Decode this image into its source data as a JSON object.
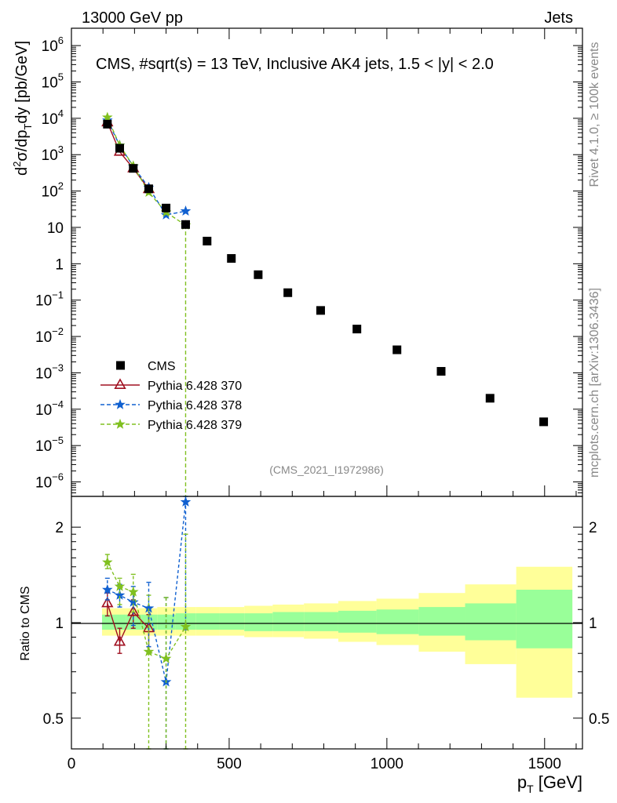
{
  "header": {
    "energy": "13000 GeV pp",
    "category": "Jets",
    "plot_title": "CMS, #sqrt(s) = 13 TeV, Inclusive AK4 jets, 1.5 < |y| < 2.0",
    "analysis_id": "(CMS_2021_I1972986)",
    "side_rivet": "Rivet 4.1.0, ≥ 100k events",
    "side_mcplots": "mcplots.cern.ch [arXiv:1306.3436]"
  },
  "chart_data": {
    "type": "scatter",
    "x_label": "p",
    "x_label_sub": "T",
    "x_label_unit": " [GeV]",
    "xlim": [
      0,
      1620
    ],
    "x_ticks": [
      0,
      500,
      1000,
      1500
    ],
    "x_tick_labels": [
      "0",
      "500",
      "1000",
      "1500"
    ],
    "main": {
      "y_label": "d²σ/dp_T dy [pb/GeV]",
      "y_scale": "log",
      "ylim": [
        4e-07,
        3000000.0
      ],
      "y_ticks": [
        {
          "v": 1000000.0,
          "base": "10",
          "exp": "6"
        },
        {
          "v": 100000.0,
          "base": "10",
          "exp": "5"
        },
        {
          "v": 10000.0,
          "base": "10",
          "exp": "4"
        },
        {
          "v": 1000.0,
          "base": "10",
          "exp": "3"
        },
        {
          "v": 100.0,
          "base": "10",
          "exp": "2"
        },
        {
          "v": 10,
          "base": "10",
          "exp": ""
        },
        {
          "v": 1,
          "base": "1",
          "exp": ""
        },
        {
          "v": 0.1,
          "base": "10",
          "exp": "−1"
        },
        {
          "v": 0.01,
          "base": "10",
          "exp": "−2"
        },
        {
          "v": 0.001,
          "base": "10",
          "exp": "−3"
        },
        {
          "v": 0.0001,
          "base": "10",
          "exp": "−4"
        },
        {
          "v": 1e-05,
          "base": "10",
          "exp": "−5"
        },
        {
          "v": 1e-06,
          "base": "10",
          "exp": "−6"
        }
      ],
      "cms": {
        "name": "CMS",
        "x": [
          114,
          153,
          196,
          245,
          300,
          362,
          430,
          507,
          592,
          686,
          790,
          905,
          1032,
          1172,
          1327,
          1497
        ],
        "y": [
          6900,
          1500,
          420,
          115,
          34,
          12,
          4.2,
          1.4,
          0.5,
          0.16,
          0.052,
          0.016,
          0.0043,
          0.0011,
          0.0002,
          4.5e-05
        ]
      },
      "series": [
        {
          "name": "Pythia 6.428 370",
          "color": "#a01020",
          "style": "solid",
          "marker": "triangle",
          "x": [
            114,
            153,
            196,
            245
          ],
          "y": [
            7700,
            1200,
            420,
            112
          ]
        },
        {
          "name": "Pythia 6.428 378",
          "color": "#1060d0",
          "style": "dashed",
          "marker": "star",
          "x": [
            114,
            153,
            196,
            245,
            300,
            362
          ],
          "y": [
            8800,
            1800,
            470,
            125,
            22,
            28
          ]
        },
        {
          "name": "Pythia 6.428 379",
          "color": "#80c020",
          "style": "dashed",
          "marker": "star",
          "x": [
            114,
            153,
            196,
            245,
            300,
            362
          ],
          "y": [
            10600,
            1800,
            490,
            92,
            26,
            11.5
          ]
        }
      ]
    },
    "ratio": {
      "y_label": "Ratio to CMS",
      "y_scale": "log",
      "ylim": [
        0.4,
        2.5
      ],
      "y_ticks": [
        {
          "v": 0.5,
          "label": "0.5"
        },
        {
          "v": 1,
          "label": "1"
        },
        {
          "v": 2,
          "label": "2"
        }
      ],
      "bands": [
        {
          "x0": 97,
          "x1": 133,
          "inner": [
            0.95,
            1.06
          ],
          "outer": [
            0.91,
            1.11
          ]
        },
        {
          "x0": 133,
          "x1": 174,
          "inner": [
            0.95,
            1.06
          ],
          "outer": [
            0.91,
            1.11
          ]
        },
        {
          "x0": 174,
          "x1": 220,
          "inner": [
            0.95,
            1.06
          ],
          "outer": [
            0.91,
            1.11
          ]
        },
        {
          "x0": 220,
          "x1": 272,
          "inner": [
            0.95,
            1.06
          ],
          "outer": [
            0.91,
            1.11
          ]
        },
        {
          "x0": 272,
          "x1": 330,
          "inner": [
            0.95,
            1.06
          ],
          "outer": [
            0.91,
            1.12
          ]
        },
        {
          "x0": 330,
          "x1": 395,
          "inner": [
            0.95,
            1.07
          ],
          "outer": [
            0.91,
            1.12
          ]
        },
        {
          "x0": 395,
          "x1": 468,
          "inner": [
            0.95,
            1.07
          ],
          "outer": [
            0.91,
            1.12
          ]
        },
        {
          "x0": 468,
          "x1": 548,
          "inner": [
            0.95,
            1.07
          ],
          "outer": [
            0.91,
            1.12
          ]
        },
        {
          "x0": 548,
          "x1": 638,
          "inner": [
            0.94,
            1.07
          ],
          "outer": [
            0.9,
            1.13
          ]
        },
        {
          "x0": 638,
          "x1": 737,
          "inner": [
            0.94,
            1.08
          ],
          "outer": [
            0.9,
            1.14
          ]
        },
        {
          "x0": 737,
          "x1": 846,
          "inner": [
            0.94,
            1.08
          ],
          "outer": [
            0.89,
            1.15
          ]
        },
        {
          "x0": 846,
          "x1": 967,
          "inner": [
            0.93,
            1.09
          ],
          "outer": [
            0.87,
            1.17
          ]
        },
        {
          "x0": 967,
          "x1": 1101,
          "inner": [
            0.92,
            1.1
          ],
          "outer": [
            0.85,
            1.19
          ]
        },
        {
          "x0": 1101,
          "x1": 1248,
          "inner": [
            0.91,
            1.12
          ],
          "outer": [
            0.81,
            1.24
          ]
        },
        {
          "x0": 1248,
          "x1": 1410,
          "inner": [
            0.88,
            1.15
          ],
          "outer": [
            0.74,
            1.32
          ]
        },
        {
          "x0": 1410,
          "x1": 1588,
          "inner": [
            0.83,
            1.27
          ],
          "outer": [
            0.58,
            1.5
          ]
        }
      ],
      "series": [
        {
          "name": "Pythia 6.428 370",
          "color": "#a01020",
          "style": "solid",
          "marker": "triangle",
          "x": [
            114,
            153,
            196,
            245
          ],
          "y": [
            1.15,
            0.87,
            1.08,
            0.96
          ],
          "err": [
            [
              1.05,
              1.24
            ],
            [
              0.8,
              0.96
            ],
            [
              0.96,
              1.18
            ],
            [
              0.84,
              1.06
            ]
          ]
        },
        {
          "name": "Pythia 6.428 378",
          "color": "#1060d0",
          "style": "dashed",
          "marker": "star",
          "x": [
            114,
            153,
            196,
            245,
            300,
            362
          ],
          "y": [
            1.27,
            1.22,
            1.16,
            1.11,
            0.65,
            2.4
          ],
          "err": [
            [
              1.18,
              1.38
            ],
            [
              1.12,
              1.32
            ],
            [
              0.98,
              1.3
            ],
            [
              0.84,
              1.34
            ],
            [
              0.4,
              1.2
            ],
            [
              0.95,
              2.5
            ]
          ]
        },
        {
          "name": "Pythia 6.428 379",
          "color": "#80c020",
          "style": "dashed",
          "marker": "star",
          "x": [
            114,
            153,
            196,
            245,
            300,
            362
          ],
          "y": [
            1.55,
            1.3,
            1.25,
            0.81,
            0.77,
            0.97
          ],
          "err": [
            [
              1.48,
              1.64
            ],
            [
              1.14,
              1.38
            ],
            [
              1.08,
              1.42
            ],
            [
              0.4,
              1.22
            ],
            [
              0.4,
              1.2
            ],
            [
              0.4,
              1.9
            ]
          ]
        }
      ]
    }
  }
}
